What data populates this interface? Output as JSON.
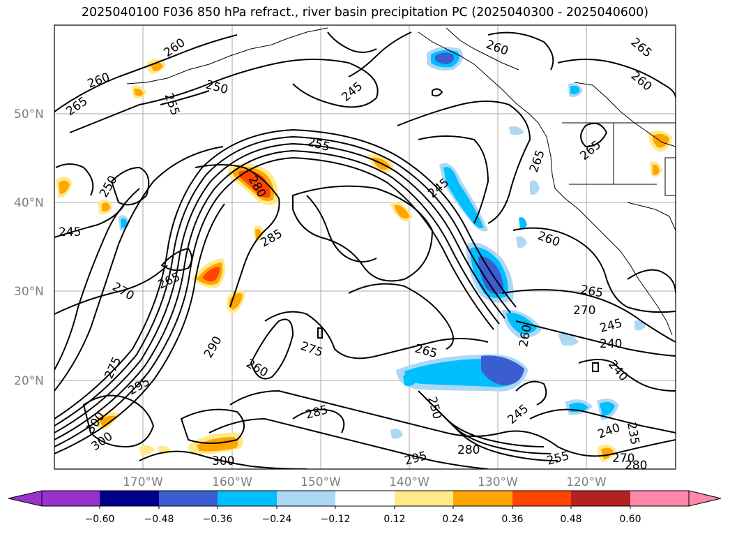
{
  "title": "2025040100 F036 850 hPa refract., river basin precipitation PC (2025040300 - 2025040600)",
  "map": {
    "lat_labels": [
      "50°N",
      "40°N",
      "30°N",
      "20°N"
    ],
    "lon_labels": [
      "170°W",
      "160°W",
      "150°W",
      "140°W",
      "130°W",
      "120°W"
    ],
    "contour_labels": [
      "260",
      "260",
      "250",
      "255",
      "245",
      "260",
      "265",
      "260",
      "265",
      "255",
      "265",
      "250",
      "280",
      "245",
      "265",
      "245",
      "265",
      "260",
      "285",
      "270",
      "265",
      "270",
      "245",
      "240",
      "260",
      "275",
      "290",
      "260",
      "275",
      "265",
      "240",
      "295",
      "300",
      "300",
      "285",
      "250",
      "245",
      "280",
      "255",
      "240",
      "235",
      "270",
      "295",
      "300",
      "280"
    ]
  },
  "colorbar": {
    "ticks": [
      "−0.60",
      "−0.48",
      "−0.36",
      "−0.24",
      "−0.12",
      "0.12",
      "0.24",
      "0.36",
      "0.48",
      "0.60"
    ],
    "colors": [
      "#9932cc",
      "#00008b",
      "#3a5ed0",
      "#00bfff",
      "#add8f5",
      "#ffffff",
      "#ffe98a",
      "#ffa500",
      "#ff4500",
      "#b22222",
      "#ff88aa"
    ]
  }
}
